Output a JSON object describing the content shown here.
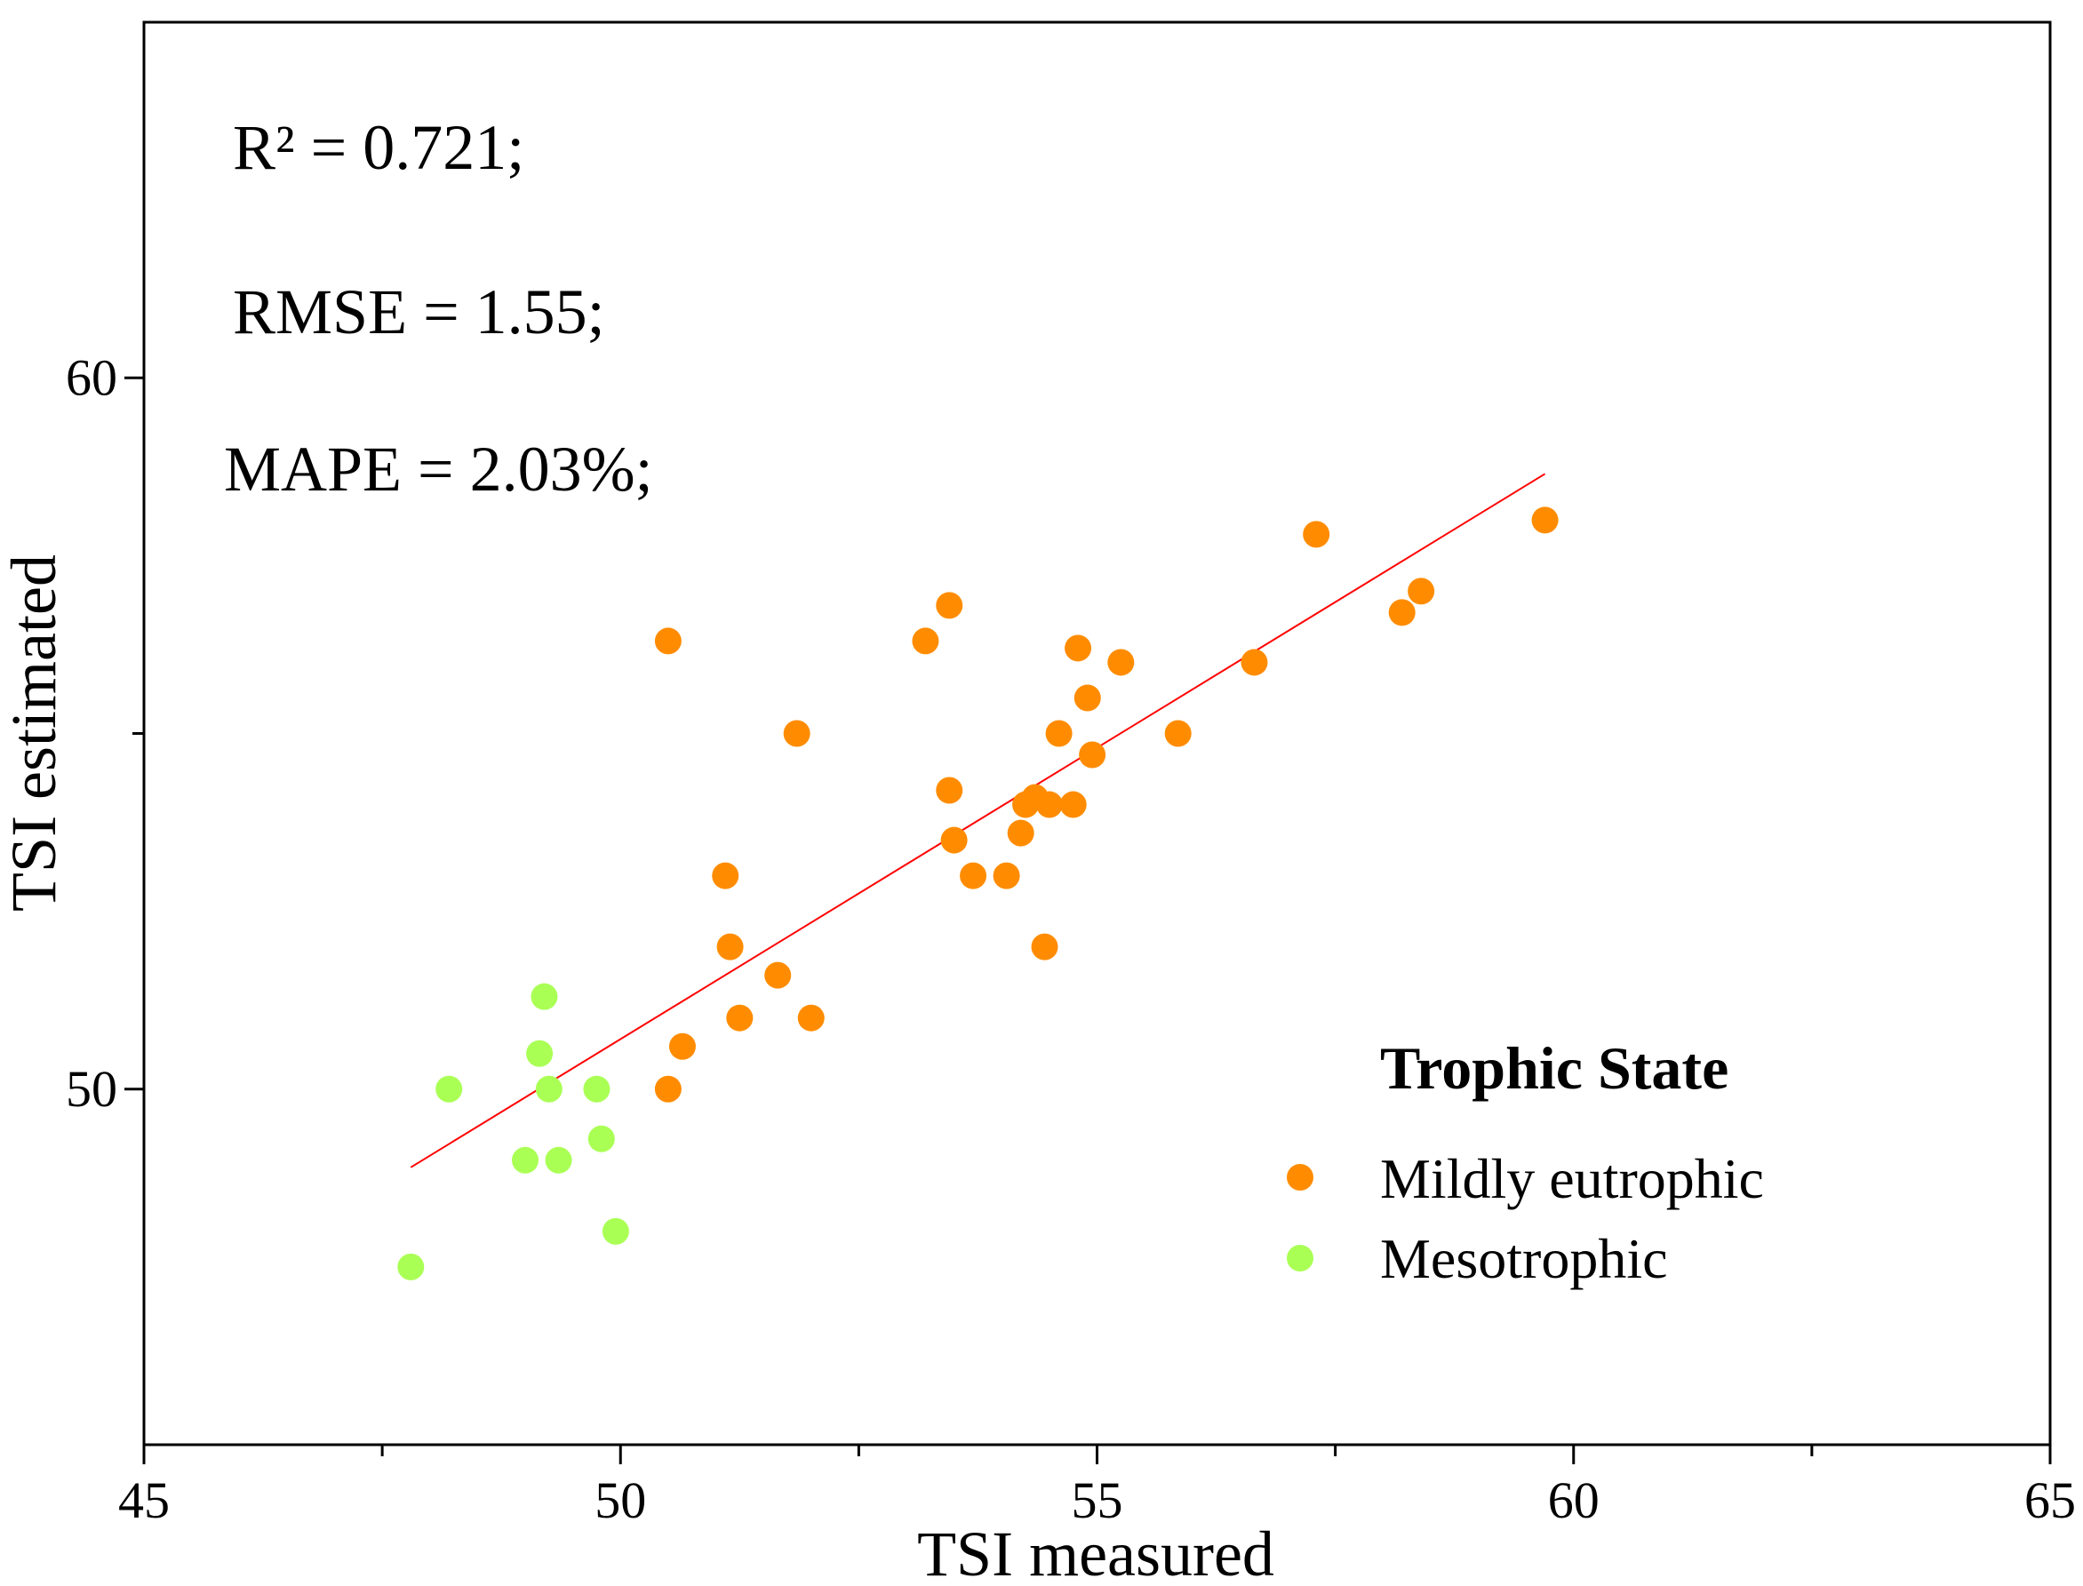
{
  "chart_data": {
    "type": "scatter",
    "title": "",
    "xlabel": "TSI measured",
    "ylabel": "TSI estimated",
    "xlim": [
      45,
      65
    ],
    "ylim": [
      45,
      65
    ],
    "x_ticks": [
      45,
      50,
      55,
      60,
      65
    ],
    "x_tick_labels": [
      "45",
      "50",
      "55",
      "60",
      "65"
    ],
    "y_ticks": [
      50,
      60
    ],
    "y_tick_labels": [
      "50",
      "60"
    ],
    "annotations": [
      "R² = 0.721;",
      "RMSE = 1.55;",
      "MAPE = 2.03%;"
    ],
    "legend_title": "Trophic State",
    "legend_position": "lower-right",
    "series": [
      {
        "name": "Mildly eutrophic",
        "color": "#ff8c00",
        "points": [
          [
            50.5,
            56.3
          ],
          [
            50.5,
            50.0
          ],
          [
            50.65,
            50.6
          ],
          [
            51.1,
            53.0
          ],
          [
            51.15,
            52.0
          ],
          [
            51.25,
            51.0
          ],
          [
            51.65,
            51.6
          ],
          [
            51.85,
            55.0
          ],
          [
            52.0,
            51.0
          ],
          [
            53.2,
            56.3
          ],
          [
            53.45,
            56.8
          ],
          [
            53.45,
            54.2
          ],
          [
            53.5,
            53.5
          ],
          [
            53.7,
            53.0
          ],
          [
            54.05,
            53.0
          ],
          [
            54.2,
            53.6
          ],
          [
            54.25,
            54.0
          ],
          [
            54.35,
            54.1
          ],
          [
            54.45,
            52.0
          ],
          [
            54.5,
            54.0
          ],
          [
            54.6,
            55.0
          ],
          [
            54.75,
            54.0
          ],
          [
            54.8,
            56.2
          ],
          [
            54.9,
            55.5
          ],
          [
            54.95,
            54.7
          ],
          [
            55.25,
            56.0
          ],
          [
            55.85,
            55.0
          ],
          [
            56.65,
            56.0
          ],
          [
            57.3,
            57.8
          ],
          [
            58.2,
            56.7
          ],
          [
            58.4,
            57.0
          ],
          [
            59.7,
            58.0
          ]
        ]
      },
      {
        "name": "Mesotrophic",
        "color": "#aaff55",
        "points": [
          [
            47.8,
            47.5
          ],
          [
            48.2,
            50.0
          ],
          [
            49.0,
            49.0
          ],
          [
            49.15,
            50.5
          ],
          [
            49.2,
            51.3
          ],
          [
            49.25,
            50.0
          ],
          [
            49.35,
            49.0
          ],
          [
            49.75,
            50.0
          ],
          [
            49.8,
            49.3
          ],
          [
            49.95,
            48.0
          ]
        ]
      }
    ],
    "regression_line": {
      "color": "#ff0000",
      "start": [
        47.8,
        48.9
      ],
      "end": [
        59.7,
        58.65
      ]
    }
  }
}
